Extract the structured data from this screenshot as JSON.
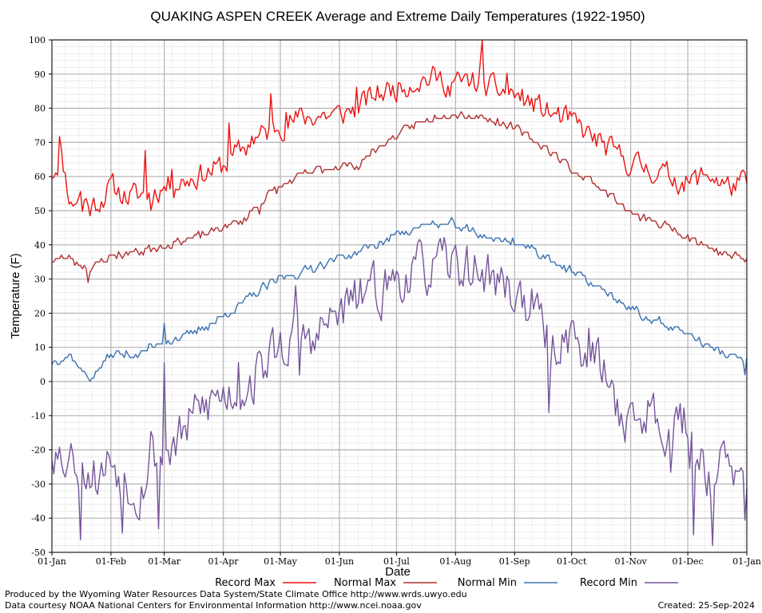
{
  "chart_data": {
    "type": "line",
    "title": "QUAKING ASPEN CREEK Average and Extreme Daily Temperatures (1922-1950)",
    "xlabel": "Date",
    "ylabel": "Temperature (F)",
    "ylim": [
      -50,
      100
    ],
    "y_ticks": [
      -50,
      -40,
      -30,
      -20,
      -10,
      0,
      10,
      20,
      30,
      40,
      50,
      60,
      70,
      80,
      90,
      100
    ],
    "x_ticks": [
      {
        "day": 0,
        "label": "01-Jan"
      },
      {
        "day": 31,
        "label": "01-Feb"
      },
      {
        "day": 59,
        "label": "01-Mar"
      },
      {
        "day": 90,
        "label": "01-Apr"
      },
      {
        "day": 120,
        "label": "01-May"
      },
      {
        "day": 151,
        "label": "01-Jun"
      },
      {
        "day": 181,
        "label": "01-Jul"
      },
      {
        "day": 212,
        "label": "01-Aug"
      },
      {
        "day": 243,
        "label": "01-Sep"
      },
      {
        "day": 273,
        "label": "01-Oct"
      },
      {
        "day": 304,
        "label": "01-Nov"
      },
      {
        "day": 334,
        "label": "01-Dec"
      },
      {
        "day": 365,
        "label": "01-Jan"
      }
    ],
    "grid": true,
    "legend_position": "bottom",
    "series": [
      {
        "name": "Record Max",
        "color": "#ee1111",
        "knots": [
          [
            0,
            61
          ],
          [
            5,
            66
          ],
          [
            10,
            52
          ],
          [
            15,
            55
          ],
          [
            20,
            51
          ],
          [
            25,
            53
          ],
          [
            31,
            57
          ],
          [
            40,
            54
          ],
          [
            50,
            55
          ],
          [
            59,
            57
          ],
          [
            70,
            59
          ],
          [
            80,
            61
          ],
          [
            90,
            63
          ],
          [
            100,
            68
          ],
          [
            110,
            72
          ],
          [
            120,
            75
          ],
          [
            130,
            77
          ],
          [
            140,
            78
          ],
          [
            151,
            78
          ],
          [
            160,
            80
          ],
          [
            170,
            84
          ],
          [
            181,
            86
          ],
          [
            190,
            88
          ],
          [
            200,
            89
          ],
          [
            212,
            87
          ],
          [
            220,
            88
          ],
          [
            230,
            86
          ],
          [
            243,
            84
          ],
          [
            250,
            82
          ],
          [
            260,
            79
          ],
          [
            273,
            76
          ],
          [
            285,
            71
          ],
          [
            295,
            67
          ],
          [
            304,
            64
          ],
          [
            315,
            62
          ],
          [
            325,
            60
          ],
          [
            334,
            58
          ],
          [
            345,
            61
          ],
          [
            355,
            57
          ],
          [
            364,
            58
          ]
        ],
        "amp": 3.2,
        "spikes": [
          [
            4,
            7
          ],
          [
            16,
            -4
          ],
          [
            49,
            13
          ],
          [
            52,
            -5
          ],
          [
            63,
            7
          ],
          [
            93,
            13
          ],
          [
            105,
            4
          ],
          [
            115,
            9
          ],
          [
            123,
            8
          ],
          [
            160,
            5
          ],
          [
            226,
            11
          ],
          [
            225,
            4
          ],
          [
            239,
            6
          ],
          [
            209,
            -4
          ]
        ],
        "seed": 11
      },
      {
        "name": "Normal Max",
        "color": "#b03030",
        "knots": [
          [
            0,
            36
          ],
          [
            10,
            36
          ],
          [
            20,
            33
          ],
          [
            31,
            37
          ],
          [
            45,
            38
          ],
          [
            59,
            40
          ],
          [
            75,
            42
          ],
          [
            90,
            45
          ],
          [
            100,
            47
          ],
          [
            110,
            53
          ],
          [
            120,
            57
          ],
          [
            130,
            60
          ],
          [
            140,
            62
          ],
          [
            151,
            63
          ],
          [
            160,
            63
          ],
          [
            170,
            68
          ],
          [
            181,
            72
          ],
          [
            190,
            75
          ],
          [
            200,
            77
          ],
          [
            210,
            79
          ],
          [
            220,
            78
          ],
          [
            230,
            77
          ],
          [
            243,
            74
          ],
          [
            255,
            70
          ],
          [
            265,
            66
          ],
          [
            273,
            62
          ],
          [
            285,
            58
          ],
          [
            295,
            54
          ],
          [
            304,
            49
          ],
          [
            315,
            47
          ],
          [
            325,
            45
          ],
          [
            334,
            43
          ],
          [
            345,
            39
          ],
          [
            355,
            37
          ],
          [
            364,
            36
          ]
        ],
        "amp": 1.1,
        "spikes": [
          [
            19,
            -3
          ],
          [
            109,
            -2
          ]
        ],
        "seed": 23
      },
      {
        "name": "Normal Min",
        "color": "#3a72b0",
        "knots": [
          [
            0,
            6
          ],
          [
            10,
            8
          ],
          [
            17,
            2
          ],
          [
            20,
            1
          ],
          [
            31,
            8
          ],
          [
            45,
            8
          ],
          [
            59,
            12
          ],
          [
            70,
            13
          ],
          [
            80,
            16
          ],
          [
            90,
            19
          ],
          [
            100,
            23
          ],
          [
            110,
            27
          ],
          [
            120,
            30
          ],
          [
            130,
            32
          ],
          [
            140,
            34
          ],
          [
            151,
            36
          ],
          [
            160,
            38
          ],
          [
            170,
            40
          ],
          [
            181,
            43
          ],
          [
            190,
            45
          ],
          [
            200,
            46
          ],
          [
            210,
            46
          ],
          [
            220,
            44
          ],
          [
            230,
            42
          ],
          [
            243,
            41
          ],
          [
            255,
            38
          ],
          [
            265,
            35
          ],
          [
            273,
            32
          ],
          [
            285,
            28
          ],
          [
            295,
            25
          ],
          [
            304,
            21
          ],
          [
            315,
            18
          ],
          [
            325,
            16
          ],
          [
            334,
            14
          ],
          [
            345,
            10
          ],
          [
            355,
            8
          ],
          [
            364,
            6
          ]
        ],
        "amp": 1.1,
        "spikes": [
          [
            59,
            6
          ],
          [
            364,
            -3
          ]
        ],
        "seed": 37
      },
      {
        "name": "Record Min",
        "color": "#75559b",
        "knots": [
          [
            0,
            -20
          ],
          [
            8,
            -22
          ],
          [
            16,
            -25
          ],
          [
            25,
            -28
          ],
          [
            31,
            -22
          ],
          [
            38,
            -28
          ],
          [
            46,
            -32
          ],
          [
            52,
            -22
          ],
          [
            59,
            -20
          ],
          [
            66,
            -18
          ],
          [
            75,
            -10
          ],
          [
            85,
            -5
          ],
          [
            95,
            -3
          ],
          [
            105,
            0
          ],
          [
            115,
            8
          ],
          [
            125,
            12
          ],
          [
            140,
            14
          ],
          [
            151,
            20
          ],
          [
            160,
            24
          ],
          [
            170,
            26
          ],
          [
            181,
            30
          ],
          [
            190,
            32
          ],
          [
            200,
            33
          ],
          [
            210,
            34
          ],
          [
            220,
            33
          ],
          [
            230,
            31
          ],
          [
            243,
            26
          ],
          [
            252,
            22
          ],
          [
            258,
            15
          ],
          [
            262,
            8
          ],
          [
            266,
            12
          ],
          [
            273,
            14
          ],
          [
            280,
            10
          ],
          [
            288,
            5
          ],
          [
            298,
            -8
          ],
          [
            304,
            -12
          ],
          [
            315,
            -8
          ],
          [
            325,
            -14
          ],
          [
            334,
            -12
          ],
          [
            340,
            -22
          ],
          [
            347,
            -28
          ],
          [
            353,
            -24
          ],
          [
            358,
            -26
          ],
          [
            364,
            -35
          ]
        ],
        "amp": 6.5,
        "spikes": [
          [
            2,
            8
          ],
          [
            11,
            6
          ],
          [
            15,
            -15
          ],
          [
            37,
            -17
          ],
          [
            52,
            6
          ],
          [
            56,
            -22
          ],
          [
            59,
            25
          ],
          [
            98,
            10
          ],
          [
            128,
            8
          ],
          [
            130,
            -10
          ],
          [
            138,
            -8
          ],
          [
            165,
            5
          ],
          [
            261,
            -15
          ],
          [
            281,
            -8
          ],
          [
            325,
            -14
          ],
          [
            335,
            -12
          ],
          [
            337,
            -25
          ],
          [
            347,
            -18
          ],
          [
            364,
            -10
          ]
        ],
        "seed": 53
      }
    ]
  },
  "legend": [
    {
      "label": "Record Max",
      "color": "#ee1111"
    },
    {
      "label": "Normal Max",
      "color": "#b03030"
    },
    {
      "label": "Normal Min",
      "color": "#3a72b0"
    },
    {
      "label": "Record Min",
      "color": "#75559b"
    }
  ],
  "footer": {
    "line1": "Produced by the Wyoming Water Resources Data System/State Climate Office http://www.wrds.uwyo.edu",
    "line2": "Data courtesy NOAA National Centers for Environmental Information http://www.ncei.noaa.gov",
    "created": "Created:  25-Sep-2024"
  }
}
